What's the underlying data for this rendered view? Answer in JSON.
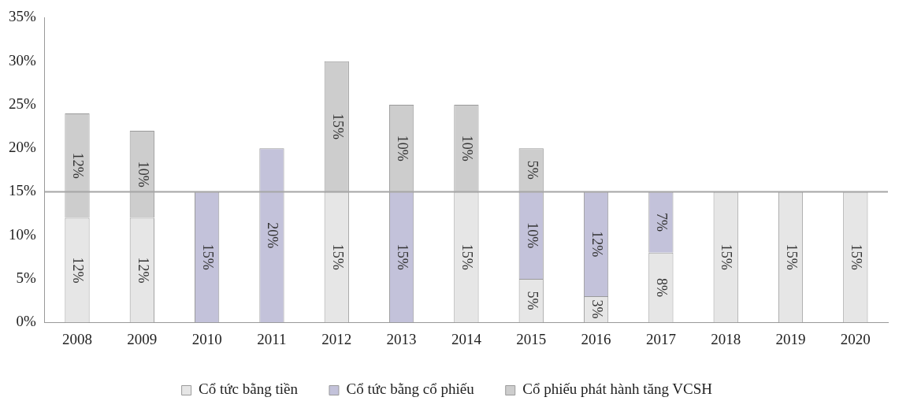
{
  "chart_data": {
    "type": "bar",
    "stacked": true,
    "categories": [
      "2008",
      "2009",
      "2010",
      "2011",
      "2012",
      "2013",
      "2014",
      "2015",
      "2016",
      "2017",
      "2018",
      "2019",
      "2020"
    ],
    "series": [
      {
        "name": "Cổ tức bằng tiền",
        "color": "#e6e6e6",
        "values": [
          12,
          12,
          null,
          null,
          15,
          null,
          15,
          5,
          3,
          8,
          15,
          15,
          15
        ],
        "value_labels": [
          "12%",
          "12%",
          null,
          null,
          "15%",
          null,
          "15%",
          "5%",
          "3%",
          "8%",
          "15%",
          "15%",
          "15%"
        ]
      },
      {
        "name": "Cổ tức bằng cổ phiếu",
        "color": "#c3c2da",
        "values": [
          null,
          null,
          15,
          20,
          null,
          15,
          null,
          10,
          12,
          7,
          null,
          null,
          null
        ],
        "value_labels": [
          null,
          null,
          "15%",
          "20%",
          null,
          "15%",
          null,
          "10%",
          "12%",
          "7%",
          null,
          null,
          null
        ]
      },
      {
        "name": "Cổ phiếu phát hành tăng VCSH",
        "color": "#cdcdcd",
        "values": [
          12,
          10,
          null,
          null,
          15,
          10,
          10,
          5,
          null,
          null,
          null,
          null,
          null
        ],
        "value_labels": [
          "12%",
          "10%",
          null,
          null,
          "15%",
          "10%",
          "10%",
          "5%",
          null,
          null,
          null,
          null,
          null
        ]
      }
    ],
    "ylim": [
      0,
      35
    ],
    "yticks": [
      {
        "value": 0,
        "label": "0%"
      },
      {
        "value": 5,
        "label": "5%"
      },
      {
        "value": 10,
        "label": "10%"
      },
      {
        "value": 15,
        "label": "15%"
      },
      {
        "value": 20,
        "label": "20%"
      },
      {
        "value": 25,
        "label": "25%"
      },
      {
        "value": 30,
        "label": "30%"
      },
      {
        "value": 35,
        "label": "35%"
      }
    ],
    "ref_lines": [
      {
        "axis": "y",
        "value": 15,
        "label": null,
        "color": "#a6a6a6"
      }
    ],
    "grid": false,
    "legend": "bottom"
  }
}
